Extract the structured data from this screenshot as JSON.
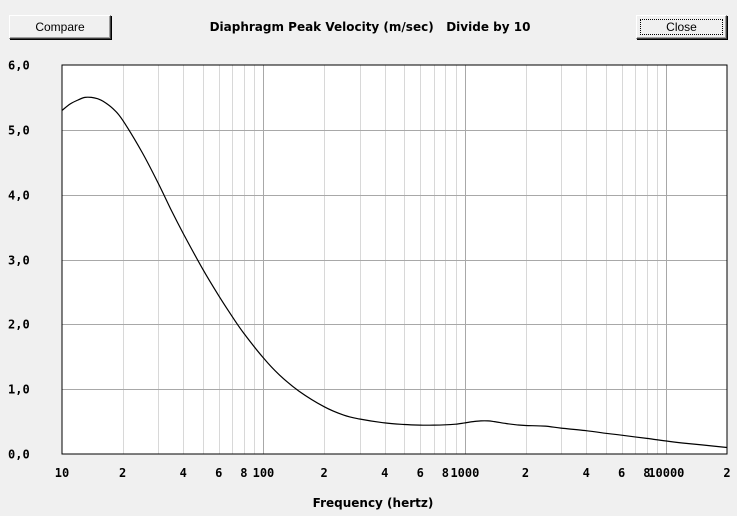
{
  "toolbar": {
    "compare_label": "Compare",
    "close_label": "Close"
  },
  "chart_data": {
    "type": "line",
    "title": "Diaphragm Peak Velocity (m/sec)   Divide by 10",
    "xlabel": "Frequency (hertz)",
    "ylabel": "",
    "xscale": "log",
    "xlim": [
      10,
      20000
    ],
    "ylim": [
      0,
      6
    ],
    "grid": true,
    "y_ticks": [
      "0,0",
      "1,0",
      "2,0",
      "3,0",
      "4,0",
      "5,0",
      "6,0"
    ],
    "x_ticks": [
      {
        "value": 10,
        "label": "10"
      },
      {
        "value": 20,
        "label": "2"
      },
      {
        "value": 40,
        "label": "4"
      },
      {
        "value": 60,
        "label": "6"
      },
      {
        "value": 80,
        "label": "8"
      },
      {
        "value": 100,
        "label": "100"
      },
      {
        "value": 200,
        "label": "2"
      },
      {
        "value": 400,
        "label": "4"
      },
      {
        "value": 600,
        "label": "6"
      },
      {
        "value": 800,
        "label": "8"
      },
      {
        "value": 1000,
        "label": "1000"
      },
      {
        "value": 2000,
        "label": "2"
      },
      {
        "value": 4000,
        "label": "4"
      },
      {
        "value": 6000,
        "label": "6"
      },
      {
        "value": 8000,
        "label": "8"
      },
      {
        "value": 10000,
        "label": "10000"
      },
      {
        "value": 20000,
        "label": "2"
      }
    ],
    "series": [
      {
        "color": "#000000",
        "x": [
          10,
          11,
          12,
          13,
          14,
          15,
          16,
          18,
          20,
          25,
          30,
          35,
          40,
          50,
          60,
          70,
          80,
          100,
          120,
          150,
          200,
          250,
          300,
          400,
          500,
          600,
          700,
          800,
          900,
          1000,
          1100,
          1200,
          1300,
          1400,
          1600,
          1800,
          2000,
          2500,
          3000,
          4000,
          5000,
          6000,
          8000,
          10000,
          12000,
          15000,
          20000
        ],
        "y": [
          5.3,
          5.4,
          5.46,
          5.5,
          5.5,
          5.48,
          5.44,
          5.32,
          5.15,
          4.65,
          4.18,
          3.75,
          3.4,
          2.85,
          2.44,
          2.12,
          1.86,
          1.48,
          1.22,
          0.97,
          0.73,
          0.6,
          0.54,
          0.48,
          0.455,
          0.445,
          0.445,
          0.45,
          0.46,
          0.48,
          0.5,
          0.51,
          0.51,
          0.5,
          0.47,
          0.45,
          0.44,
          0.43,
          0.4,
          0.36,
          0.32,
          0.29,
          0.24,
          0.2,
          0.17,
          0.14,
          0.1
        ]
      }
    ]
  }
}
